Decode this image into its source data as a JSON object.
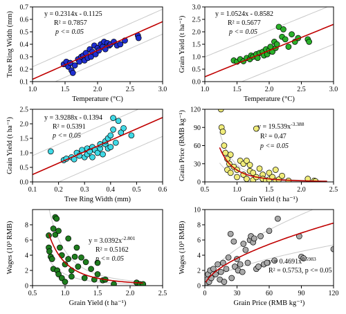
{
  "chart_data": [
    {
      "type": "scatter",
      "xlabel": "Temperature (°C)",
      "ylabel": "Tree Ring Width (mm)",
      "xlim": [
        1.0,
        3.0
      ],
      "ylim": [
        0.1,
        0.7
      ],
      "xticks": [
        1.0,
        1.5,
        2.0,
        2.5,
        3.0
      ],
      "xtick_labels": [
        "1.0",
        "1.5",
        "2.0",
        "2.5",
        "3.0"
      ],
      "yticks": [
        0.1,
        0.2,
        0.3,
        0.4,
        0.5,
        0.6,
        0.7
      ],
      "ytick_labels": [
        "0.1",
        "0.2",
        "0.3",
        "0.4",
        "0.5",
        "0.6",
        "0.7"
      ],
      "annotation": [
        "y = 0.2314x - 0.1125",
        "R² = 0.7857",
        "p <= 0.05"
      ],
      "marker_color": "#1f2fd0",
      "fit": {
        "kind": "linear",
        "a": 0.2314,
        "b": -0.1125,
        "x_from": 1.0,
        "x_to": 3.0
      },
      "band": {
        "upper_offset": 0.1,
        "lower_offset": -0.1
      },
      "points": [
        [
          1.48,
          0.24
        ],
        [
          1.52,
          0.26
        ],
        [
          1.55,
          0.22
        ],
        [
          1.58,
          0.25
        ],
        [
          1.6,
          0.19
        ],
        [
          1.62,
          0.17
        ],
        [
          1.65,
          0.23
        ],
        [
          1.7,
          0.28
        ],
        [
          1.72,
          0.26
        ],
        [
          1.75,
          0.3
        ],
        [
          1.78,
          0.31
        ],
        [
          1.8,
          0.27
        ],
        [
          1.82,
          0.33
        ],
        [
          1.85,
          0.29
        ],
        [
          1.88,
          0.36
        ],
        [
          1.9,
          0.3
        ],
        [
          1.92,
          0.34
        ],
        [
          1.95,
          0.39
        ],
        [
          1.97,
          0.32
        ],
        [
          2.0,
          0.37
        ],
        [
          2.02,
          0.35
        ],
        [
          2.05,
          0.4
        ],
        [
          2.08,
          0.38
        ],
        [
          2.1,
          0.42
        ],
        [
          2.12,
          0.36
        ],
        [
          2.15,
          0.41
        ],
        [
          2.18,
          0.39
        ],
        [
          2.2,
          0.4
        ],
        [
          2.25,
          0.42
        ],
        [
          2.3,
          0.39
        ],
        [
          2.35,
          0.4
        ],
        [
          2.42,
          0.43
        ],
        [
          2.62,
          0.47
        ],
        [
          2.63,
          0.45
        ]
      ]
    },
    {
      "type": "scatter",
      "xlabel": "Temperature (°C)",
      "ylabel": "Grain Yield (t ha⁻¹)",
      "xlim": [
        1.0,
        3.0
      ],
      "ylim": [
        0.0,
        3.0
      ],
      "xticks": [
        1.0,
        1.5,
        2.0,
        2.5,
        3.0
      ],
      "xtick_labels": [
        "1.0",
        "1.5",
        "2.0",
        "2.5",
        "3.0"
      ],
      "yticks": [
        0.0,
        0.5,
        1.0,
        1.5,
        2.0,
        2.5,
        3.0
      ],
      "ytick_labels": [
        "0.0",
        "0.5",
        "1.0",
        "1.5",
        "2.0",
        "2.5",
        "3.0"
      ],
      "annotation": [
        "y = 1.0524x - 0.8582",
        "R² = 0.5677",
        "p <= 0.05"
      ],
      "marker_color": "#2ab02a",
      "fit": {
        "kind": "linear",
        "a": 1.0524,
        "b": -0.8582,
        "x_from": 1.0,
        "x_to": 3.0
      },
      "band": {
        "upper_offset": 0.8,
        "lower_offset": -0.8
      },
      "points": [
        [
          1.45,
          0.85
        ],
        [
          1.5,
          0.8
        ],
        [
          1.55,
          0.9
        ],
        [
          1.6,
          0.82
        ],
        [
          1.65,
          0.95
        ],
        [
          1.7,
          0.9
        ],
        [
          1.72,
          1.05
        ],
        [
          1.75,
          1.0
        ],
        [
          1.8,
          1.1
        ],
        [
          1.82,
          0.95
        ],
        [
          1.85,
          1.15
        ],
        [
          1.9,
          1.2
        ],
        [
          1.92,
          1.05
        ],
        [
          1.95,
          1.3
        ],
        [
          1.97,
          1.1
        ],
        [
          2.0,
          1.25
        ],
        [
          2.02,
          1.4
        ],
        [
          2.05,
          1.2
        ],
        [
          2.08,
          1.6
        ],
        [
          2.1,
          1.35
        ],
        [
          2.12,
          1.5
        ],
        [
          2.15,
          2.2
        ],
        [
          2.2,
          1.8
        ],
        [
          2.22,
          2.1
        ],
        [
          2.25,
          1.7
        ],
        [
          2.3,
          1.4
        ],
        [
          2.35,
          1.9
        ],
        [
          2.4,
          1.6
        ],
        [
          2.45,
          1.75
        ],
        [
          2.6,
          1.7
        ],
        [
          2.62,
          1.6
        ]
      ]
    },
    {
      "type": "scatter",
      "xlabel": "Tree Ring Width (mm)",
      "ylabel": "Grain Yield (t ha⁻¹)",
      "xlim": [
        0.1,
        0.6
      ],
      "ylim": [
        0.0,
        2.5
      ],
      "xticks": [
        0.1,
        0.2,
        0.3,
        0.4,
        0.5,
        0.6
      ],
      "xtick_labels": [
        "0.1",
        "0.2",
        "0.3",
        "0.4",
        "0.5",
        "0.6"
      ],
      "yticks": [
        0.0,
        0.5,
        1.0,
        1.5,
        2.0,
        2.5
      ],
      "ytick_labels": [
        "0.0",
        "0.5",
        "1.0",
        "1.5",
        "2.0",
        "2.5"
      ],
      "annotation": [
        "y = 3.9288x - 0.1394",
        "R² = 0.5391",
        "p <= 0.05"
      ],
      "marker_color": "#3fd9e6",
      "fit": {
        "kind": "linear",
        "a": 3.9288,
        "b": -0.1394,
        "x_from": 0.1,
        "x_to": 0.6
      },
      "band": {
        "upper_offset": 0.65,
        "lower_offset": -0.65
      },
      "points": [
        [
          0.17,
          1.05
        ],
        [
          0.22,
          0.75
        ],
        [
          0.23,
          0.8
        ],
        [
          0.25,
          0.85
        ],
        [
          0.26,
          0.78
        ],
        [
          0.27,
          1.0
        ],
        [
          0.28,
          0.9
        ],
        [
          0.29,
          1.1
        ],
        [
          0.3,
          0.85
        ],
        [
          0.31,
          1.15
        ],
        [
          0.31,
          0.95
        ],
        [
          0.32,
          1.05
        ],
        [
          0.33,
          1.2
        ],
        [
          0.33,
          0.85
        ],
        [
          0.34,
          1.1
        ],
        [
          0.35,
          1.0
        ],
        [
          0.36,
          1.15
        ],
        [
          0.36,
          1.3
        ],
        [
          0.37,
          0.95
        ],
        [
          0.38,
          1.3
        ],
        [
          0.38,
          1.4
        ],
        [
          0.39,
          1.5
        ],
        [
          0.39,
          1.15
        ],
        [
          0.4,
          1.6
        ],
        [
          0.4,
          1.2
        ],
        [
          0.41,
          2.2
        ],
        [
          0.41,
          1.8
        ],
        [
          0.42,
          1.35
        ],
        [
          0.43,
          2.1
        ],
        [
          0.44,
          1.7
        ],
        [
          0.45,
          1.85
        ],
        [
          0.48,
          1.6
        ]
      ]
    },
    {
      "type": "scatter",
      "xlabel": "Grain Yield (t ha⁻¹)",
      "ylabel": "Grain Price (RMB kg⁻¹)",
      "xlim": [
        0.5,
        2.5
      ],
      "ylim": [
        0,
        120
      ],
      "xticks": [
        0.5,
        1.0,
        1.5,
        2.0,
        2.5
      ],
      "xtick_labels": [
        "0.5",
        "1.0",
        "1.5",
        "2.0",
        "2.5"
      ],
      "yticks": [
        0,
        30,
        60,
        90,
        120
      ],
      "ytick_labels": [
        "0",
        "30",
        "60",
        "90",
        "120"
      ],
      "annotation": [
        "y = 19.539x",
        "-3.388",
        "R² = 0.47",
        "p <= 0.05"
      ],
      "marker_color": "#f0ec7a",
      "fit": {
        "kind": "power",
        "a": 19.539,
        "b": -3.388,
        "x_from": 0.73,
        "x_to": 2.4
      },
      "band": {
        "upper_factor": 1.45,
        "lower_factor": 0.55
      },
      "points": [
        [
          0.75,
          120
        ],
        [
          0.76,
          90
        ],
        [
          0.78,
          83
        ],
        [
          0.8,
          60
        ],
        [
          0.82,
          48
        ],
        [
          0.85,
          38
        ],
        [
          0.85,
          20
        ],
        [
          0.88,
          30
        ],
        [
          0.9,
          45
        ],
        [
          0.9,
          15
        ],
        [
          0.95,
          25
        ],
        [
          1.0,
          20
        ],
        [
          1.0,
          8
        ],
        [
          1.05,
          35
        ],
        [
          1.1,
          12
        ],
        [
          1.1,
          30
        ],
        [
          1.15,
          5
        ],
        [
          1.15,
          35
        ],
        [
          1.2,
          18
        ],
        [
          1.2,
          28
        ],
        [
          1.25,
          3
        ],
        [
          1.25,
          15
        ],
        [
          1.3,
          88
        ],
        [
          1.3,
          8
        ],
        [
          1.35,
          22
        ],
        [
          1.4,
          12
        ],
        [
          1.4,
          5
        ],
        [
          1.45,
          2
        ],
        [
          1.5,
          15
        ],
        [
          1.5,
          4
        ],
        [
          1.55,
          8
        ],
        [
          1.6,
          2
        ],
        [
          1.6,
          20
        ],
        [
          1.65,
          4
        ],
        [
          1.7,
          10
        ],
        [
          1.8,
          2
        ],
        [
          2.1,
          5
        ],
        [
          2.2,
          2
        ],
        [
          2.22,
          1
        ]
      ]
    },
    {
      "type": "scatter",
      "xlabel": "Grain Yield (t ha⁻¹)",
      "ylabel": "Wages (10³ RMB)",
      "xlim": [
        0.5,
        2.5
      ],
      "ylim": [
        0,
        10
      ],
      "xticks": [
        0.5,
        1.0,
        1.5,
        2.0,
        2.5
      ],
      "xtick_labels": [
        "0.5",
        "1.0",
        "1.5",
        "2.0",
        "2.5"
      ],
      "yticks": [
        0,
        2,
        4,
        6,
        8
      ],
      "ytick_labels": [
        "0",
        "2",
        "4",
        "6",
        "8"
      ],
      "annotation": [
        "y = 3.0392x",
        "-2.801",
        "R² = 0.5162",
        "p <= 0.05"
      ],
      "marker_color": "#1e7d1e",
      "fit": {
        "kind": "power",
        "a": 3.0392,
        "b": -2.801,
        "x_from": 0.75,
        "x_to": 2.2
      },
      "band": {
        "upper_factor": 1.5,
        "lower_factor": 0.5
      },
      "points": [
        [
          0.75,
          6.6
        ],
        [
          0.75,
          5
        ],
        [
          0.76,
          4.5
        ],
        [
          0.78,
          3.8
        ],
        [
          0.8,
          3.5
        ],
        [
          0.82,
          7.5
        ],
        [
          0.82,
          2.2
        ],
        [
          0.85,
          9
        ],
        [
          0.85,
          6.7
        ],
        [
          0.87,
          8.8
        ],
        [
          0.88,
          2
        ],
        [
          0.9,
          7.2
        ],
        [
          0.9,
          1.5
        ],
        [
          0.92,
          5
        ],
        [
          0.95,
          4
        ],
        [
          0.95,
          1
        ],
        [
          1.0,
          2.8
        ],
        [
          1.0,
          0.5
        ],
        [
          1.05,
          6.2
        ],
        [
          1.05,
          3.5
        ],
        [
          1.1,
          2
        ],
        [
          1.1,
          1.2
        ],
        [
          1.15,
          3.8
        ],
        [
          1.18,
          5
        ],
        [
          1.2,
          2.5
        ],
        [
          1.25,
          3.7
        ],
        [
          1.3,
          1
        ],
        [
          1.32,
          3.1
        ],
        [
          1.4,
          2.2
        ],
        [
          1.45,
          0.8
        ],
        [
          1.5,
          1.5
        ],
        [
          1.5,
          3
        ],
        [
          1.58,
          0.7
        ],
        [
          1.62,
          0.8
        ],
        [
          1.75,
          0.2
        ],
        [
          2.1,
          0.4
        ],
        [
          2.15,
          0.2
        ],
        [
          2.2,
          0.2
        ]
      ]
    },
    {
      "type": "scatter",
      "xlabel": "Grain Price (RMB kg⁻¹)",
      "ylabel": "Wages (10³ RMB)",
      "xlim": [
        0,
        120
      ],
      "ylim": [
        0,
        10
      ],
      "xticks": [
        0,
        30,
        60,
        90,
        120
      ],
      "xtick_labels": [
        "0",
        "30",
        "60",
        "90",
        "120"
      ],
      "yticks": [
        0,
        2,
        4,
        6,
        8,
        10
      ],
      "ytick_labels": [
        "0",
        "2",
        "4",
        "6",
        "8",
        "10"
      ],
      "annotation": [
        "y = 0.4691x",
        "0.5983",
        "R² = 0.5753, p <= 0.05"
      ],
      "marker_color": "#a9a9a9",
      "fit": {
        "kind": "power",
        "a": 0.4691,
        "b": 0.5983,
        "x_from": 1,
        "x_to": 120
      },
      "band": {
        "upper_factor": 1.35,
        "lower_factor": 0.65
      },
      "points": [
        [
          1,
          0.3
        ],
        [
          2,
          0.8
        ],
        [
          3,
          1.5
        ],
        [
          4,
          0.5
        ],
        [
          5,
          2
        ],
        [
          6,
          1
        ],
        [
          8,
          2.2
        ],
        [
          10,
          1.5
        ],
        [
          12,
          2.8
        ],
        [
          14,
          0.8
        ],
        [
          15,
          1.8
        ],
        [
          17,
          3
        ],
        [
          18,
          0.5
        ],
        [
          20,
          2.2
        ],
        [
          22,
          3.7
        ],
        [
          24,
          6.8
        ],
        [
          25,
          1
        ],
        [
          27,
          5.8
        ],
        [
          28,
          2.5
        ],
        [
          30,
          3.5
        ],
        [
          31,
          2
        ],
        [
          33,
          2.8
        ],
        [
          35,
          1.8
        ],
        [
          36,
          5.5
        ],
        [
          38,
          4.7
        ],
        [
          40,
          3
        ],
        [
          42,
          6
        ],
        [
          43,
          6.5
        ],
        [
          45,
          5.7
        ],
        [
          46,
          6.2
        ],
        [
          48,
          2.2
        ],
        [
          50,
          2.5
        ],
        [
          52,
          6.5
        ],
        [
          55,
          2.8
        ],
        [
          58,
          3
        ],
        [
          60,
          7.2
        ],
        [
          65,
          3.3
        ],
        [
          68,
          8.8
        ],
        [
          88,
          6.5
        ],
        [
          90,
          3.8
        ],
        [
          92,
          3.6
        ],
        [
          120,
          4.8
        ]
      ]
    }
  ]
}
